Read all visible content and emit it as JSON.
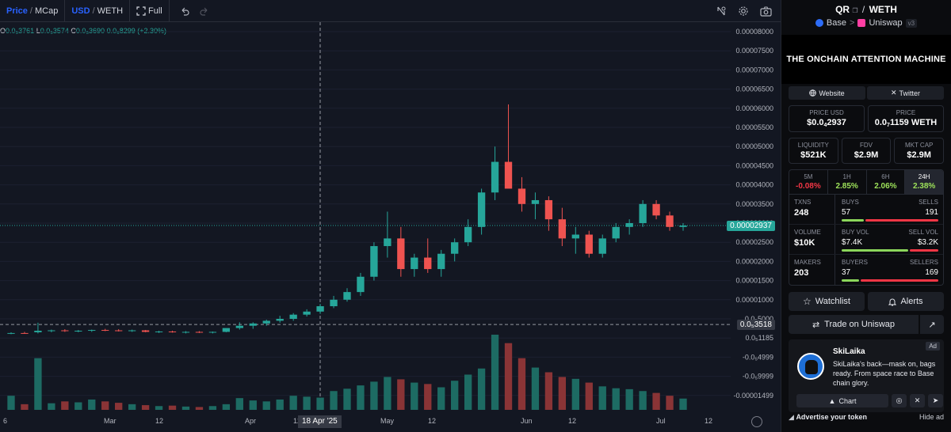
{
  "toolbar": {
    "price_label": "Price",
    "mcap_label": "MCap",
    "usd_label": "USD",
    "weth_label": "WETH",
    "full_label": "Full",
    "fullscreen_icon": "fullscreen-icon",
    "undo_icon": "undo-icon",
    "redo_icon": "redo-icon",
    "reset_icon": "reset-icon",
    "settings_icon": "gear-icon",
    "camera_icon": "camera-icon"
  },
  "chart": {
    "ohlc": {
      "open_label": "O",
      "open": "0.0₅3761",
      "low_label": "L",
      "low": "0.0₅3574",
      "close_label": "C",
      "close": "0.0₅3690",
      "change": "0.0₆8299 (+2.30%)"
    },
    "current_price_badge": "0.00002937",
    "crosshair_price_badge": "0.0₅3518",
    "crosshair_date_badge": "18 Apr '25",
    "colors": {
      "up": "#26a69a",
      "down": "#ef5350",
      "badge": "#26a69a"
    }
  },
  "chart_data": {
    "type": "candlestick",
    "price_axis_labels": [
      "0.00008000",
      "0.00007500",
      "0.00007000",
      "0.00006500",
      "0.00006000",
      "0.00005500",
      "0.00005000",
      "0.00004500",
      "0.00004000",
      "0.00003500",
      "0.00003000",
      "0.00002500",
      "0.00002000",
      "0.00001500",
      "0.00001000",
      "0.0₅5000",
      "0.0₅1185",
      "-0.0₅4999",
      "-0.0₅9999",
      "-0.00001499"
    ],
    "price_axis_values": [
      8e-05,
      7.5e-05,
      7e-05,
      6.5e-05,
      6e-05,
      5.5e-05,
      5e-05,
      4.5e-05,
      4e-05,
      3.5e-05,
      3e-05,
      2.5e-05,
      2e-05,
      1.5e-05,
      1e-05,
      5e-06
    ],
    "time_axis_labels": [
      "6",
      "Mar",
      "12",
      "Apr",
      "12",
      "May",
      "12",
      "Jun",
      "12",
      "Jul",
      "12"
    ],
    "current_price": 2.937e-05,
    "crosshair_price": 3.518e-06,
    "ohlc_by_period": [
      {
        "o": 1.2e-06,
        "h": 1.5e-06,
        "l": 1e-06,
        "c": 1.3e-06
      },
      {
        "o": 1.3e-06,
        "h": 1.6e-06,
        "l": 1.1e-06,
        "c": 1.2e-06
      },
      {
        "o": 1.5e-06,
        "h": 4e-06,
        "l": 1.2e-06,
        "c": 1.9e-06
      },
      {
        "o": 1.9e-06,
        "h": 2.2e-06,
        "l": 1.5e-06,
        "c": 2e-06
      },
      {
        "o": 2e-06,
        "h": 2.3e-06,
        "l": 1.6e-06,
        "c": 1.8e-06
      },
      {
        "o": 1.8e-06,
        "h": 2.1e-06,
        "l": 1.5e-06,
        "c": 1.9e-06
      },
      {
        "o": 1.9e-06,
        "h": 2.2e-06,
        "l": 1.6e-06,
        "c": 2.1e-06
      },
      {
        "o": 2.1e-06,
        "h": 2.4e-06,
        "l": 1.8e-06,
        "c": 2e-06
      },
      {
        "o": 2e-06,
        "h": 2.3e-06,
        "l": 1.7e-06,
        "c": 1.9e-06
      },
      {
        "o": 1.9e-06,
        "h": 2.2e-06,
        "l": 1.6e-06,
        "c": 2e-06
      },
      {
        "o": 2e-06,
        "h": 2.1e-06,
        "l": 1.5e-06,
        "c": 1.6e-06
      },
      {
        "o": 1.6e-06,
        "h": 1.9e-06,
        "l": 1.3e-06,
        "c": 1.7e-06
      },
      {
        "o": 1.7e-06,
        "h": 1.9e-06,
        "l": 1.4e-06,
        "c": 1.5e-06
      },
      {
        "o": 1.5e-06,
        "h": 1.8e-06,
        "l": 1.2e-06,
        "c": 1.6e-06
      },
      {
        "o": 1.6e-06,
        "h": 1.8e-06,
        "l": 1.3e-06,
        "c": 1.4e-06
      },
      {
        "o": 1.4e-06,
        "h": 1.7e-06,
        "l": 1.2e-06,
        "c": 1.6e-06
      },
      {
        "o": 1.6e-06,
        "h": 2e-06,
        "l": 1.5e-06,
        "c": 2.6e-06
      },
      {
        "o": 2.6e-06,
        "h": 4.1e-06,
        "l": 2.2e-06,
        "c": 3.2e-06
      },
      {
        "o": 3.2e-06,
        "h": 4.1e-06,
        "l": 2.4e-06,
        "c": 3.8e-06
      },
      {
        "o": 3.8e-06,
        "h": 4.8e-06,
        "l": 3.2e-06,
        "c": 4.5e-06
      },
      {
        "o": 4.5e-06,
        "h": 5.8e-06,
        "l": 4e-06,
        "c": 5e-06
      },
      {
        "o": 5e-06,
        "h": 6.5e-06,
        "l": 4.5e-06,
        "c": 6.1e-06
      },
      {
        "o": 6.1e-06,
        "h": 7.5e-06,
        "l": 5.6e-06,
        "c": 6.9e-06
      },
      {
        "o": 6.9e-06,
        "h": 8.9e-06,
        "l": 6.3e-06,
        "c": 8.3e-06
      },
      {
        "o": 8.3e-06,
        "h": 1.1e-05,
        "l": 7.8e-06,
        "c": 1e-05
      },
      {
        "o": 1e-05,
        "h": 1.3e-05,
        "l": 9.5e-06,
        "c": 1.2e-05
      },
      {
        "o": 1.2e-05,
        "h": 1.7e-05,
        "l": 1.1e-05,
        "c": 1.6e-05
      },
      {
        "o": 1.6e-05,
        "h": 2.5e-05,
        "l": 1.5e-05,
        "c": 2.4e-05
      },
      {
        "o": 2.4e-05,
        "h": 3.3e-05,
        "l": 2.1e-05,
        "c": 2.6e-05
      },
      {
        "o": 2.6e-05,
        "h": 2.9e-05,
        "l": 1.6e-05,
        "c": 1.8e-05
      },
      {
        "o": 1.8e-05,
        "h": 2.2e-05,
        "l": 1.6e-05,
        "c": 2.1e-05
      },
      {
        "o": 2.1e-05,
        "h": 2.6e-05,
        "l": 1.7e-05,
        "c": 1.8e-05
      },
      {
        "o": 1.8e-05,
        "h": 2.3e-05,
        "l": 1.6e-05,
        "c": 2.2e-05
      },
      {
        "o": 2.2e-05,
        "h": 2.6e-05,
        "l": 2e-05,
        "c": 2.5e-05
      },
      {
        "o": 2.5e-05,
        "h": 3.1e-05,
        "l": 2.4e-05,
        "c": 2.9e-05
      },
      {
        "o": 2.9e-05,
        "h": 3.9e-05,
        "l": 2.7e-05,
        "c": 3.8e-05
      },
      {
        "o": 3.8e-05,
        "h": 5e-05,
        "l": 3.6e-05,
        "c": 4.6e-05
      },
      {
        "o": 4.6e-05,
        "h": 6.1e-05,
        "l": 4.2e-05,
        "c": 3.9e-05
      },
      {
        "o": 3.9e-05,
        "h": 4.2e-05,
        "l": 3.3e-05,
        "c": 3.5e-05
      },
      {
        "o": 3.5e-05,
        "h": 3.8e-05,
        "l": 3.1e-05,
        "c": 3.6e-05
      },
      {
        "o": 3.6e-05,
        "h": 3.7e-05,
        "l": 2.8e-05,
        "c": 3.1e-05
      },
      {
        "o": 3.1e-05,
        "h": 3.4e-05,
        "l": 2.4e-05,
        "c": 2.6e-05
      },
      {
        "o": 2.6e-05,
        "h": 2.9e-05,
        "l": 2.2e-05,
        "c": 2.7e-05
      },
      {
        "o": 2.7e-05,
        "h": 2.8e-05,
        "l": 2.1e-05,
        "c": 2.2e-05
      },
      {
        "o": 2.2e-05,
        "h": 2.7e-05,
        "l": 2.1e-05,
        "c": 2.6e-05
      },
      {
        "o": 2.6e-05,
        "h": 3e-05,
        "l": 2.5e-05,
        "c": 2.9e-05
      },
      {
        "o": 2.9e-05,
        "h": 3.1e-05,
        "l": 2.7e-05,
        "c": 3e-05
      },
      {
        "o": 3e-05,
        "h": 3.6e-05,
        "l": 2.9e-05,
        "c": 3.5e-05
      },
      {
        "o": 3.5e-05,
        "h": 3.6e-05,
        "l": 3.1e-05,
        "c": 3.2e-05
      },
      {
        "o": 3.2e-05,
        "h": 3.3e-05,
        "l": 2.8e-05,
        "c": 2.9e-05
      },
      {
        "o": 2.9e-05,
        "h": 3e-05,
        "l": 2.8e-05,
        "c": 2.937e-05
      }
    ],
    "volume_by_period": [
      30,
      12,
      110,
      14,
      18,
      16,
      22,
      18,
      15,
      12,
      10,
      8,
      9,
      7,
      6,
      8,
      12,
      25,
      20,
      18,
      22,
      30,
      28,
      26,
      40,
      45,
      52,
      60,
      70,
      65,
      58,
      55,
      48,
      62,
      75,
      88,
      160,
      142,
      110,
      90,
      80,
      70,
      66,
      58,
      50,
      46,
      44,
      40,
      36,
      30,
      24
    ]
  },
  "sidebar": {
    "pair": {
      "base": "QR",
      "separator": "/",
      "quote": "WETH"
    },
    "chain": "Base",
    "chevron": ">",
    "dex": "Uniswap",
    "dex_version": "v3",
    "banner_text": "THE ONCHAIN ATTENTION MACHINE",
    "website_label": "Website",
    "twitter_label": "Twitter",
    "price_usd_label": "PRICE USD",
    "price_usd_prefix": "$0.0",
    "price_usd_sub": "4",
    "price_usd_rest": "2937",
    "price_label": "PRICE",
    "price_prefix": "0.0",
    "price_sub": "7",
    "price_rest": "1159 WETH",
    "liquidity_label": "LIQUIDITY",
    "liquidity": "$521K",
    "fdv_label": "FDV",
    "fdv": "$2.9M",
    "mktcap_label": "MKT CAP",
    "mktcap": "$2.9M",
    "tf": [
      {
        "label": "5M",
        "value": "-0.08%",
        "sign": "neg"
      },
      {
        "label": "1H",
        "value": "2.85%",
        "sign": "pos"
      },
      {
        "label": "6H",
        "value": "2.06%",
        "sign": "pos"
      },
      {
        "label": "24H",
        "value": "2.38%",
        "sign": "pos"
      }
    ],
    "txns_label": "TXNS",
    "txns": "248",
    "buys_label": "BUYS",
    "buys": "57",
    "sells_label": "SELLS",
    "sells": "191",
    "buy_share": 0.23,
    "volume_label": "VOLUME",
    "volume": "$10K",
    "buy_vol_label": "BUY VOL",
    "buy_vol": "$7.4K",
    "sell_vol_label": "SELL VOL",
    "sell_vol": "$3.2K",
    "buy_vol_share": 0.7,
    "makers_label": "MAKERS",
    "makers": "203",
    "buyers_label": "BUYERS",
    "buyers": "37",
    "sellers_label": "SELLERS",
    "sellers": "169",
    "buyer_share": 0.18,
    "watchlist_label": "Watchlist",
    "alerts_label": "Alerts",
    "trade_label": "Trade on Uniswap",
    "ad": {
      "tag": "Ad",
      "name": "SkiLaika",
      "description": "SkiLaika's back—mask on, bags ready. From space race to Base chain glory.",
      "chart_label": "Chart"
    },
    "advertise_label": "Advertise your token",
    "hide_ad_label": "Hide ad"
  }
}
